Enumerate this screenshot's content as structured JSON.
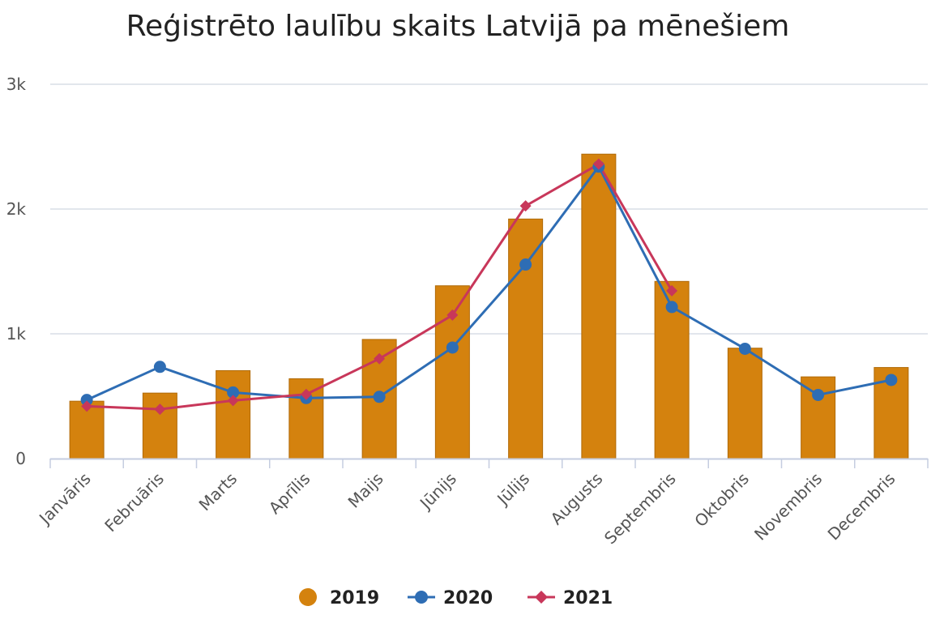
{
  "chart_data": {
    "type": "bar",
    "title": "Reģistrēto laulību skaits Latvijā pa mēnešiem",
    "xlabel": "",
    "ylabel": "",
    "categories": [
      "Janvāris",
      "Februāris",
      "Marts",
      "Aprīlis",
      "Maijs",
      "Jūnijs",
      "Jūlijs",
      "Augusts",
      "Septembris",
      "Oktobris",
      "Novembris",
      "Decembris"
    ],
    "ylim": [
      0,
      3000
    ],
    "yticks": [
      0,
      1000,
      2000,
      3000
    ],
    "ytick_labels": [
      "0",
      "1k",
      "2k",
      "3k"
    ],
    "grid": true,
    "legend_position": "bottom",
    "series": [
      {
        "name": "2019",
        "type": "bar",
        "color": "#D4820E",
        "values": [
          460,
          525,
          705,
          640,
          955,
          1385,
          1920,
          2440,
          1420,
          885,
          655,
          730
        ]
      },
      {
        "name": "2020",
        "type": "line",
        "marker": "circle",
        "color": "#2E6DB4",
        "values": [
          470,
          735,
          530,
          485,
          495,
          890,
          1555,
          2340,
          1215,
          880,
          510,
          630
        ]
      },
      {
        "name": "2021",
        "type": "line",
        "marker": "diamond",
        "color": "#C8375A",
        "values": [
          420,
          395,
          465,
          515,
          800,
          1150,
          2025,
          2360,
          1345,
          null,
          null,
          null
        ]
      }
    ]
  }
}
